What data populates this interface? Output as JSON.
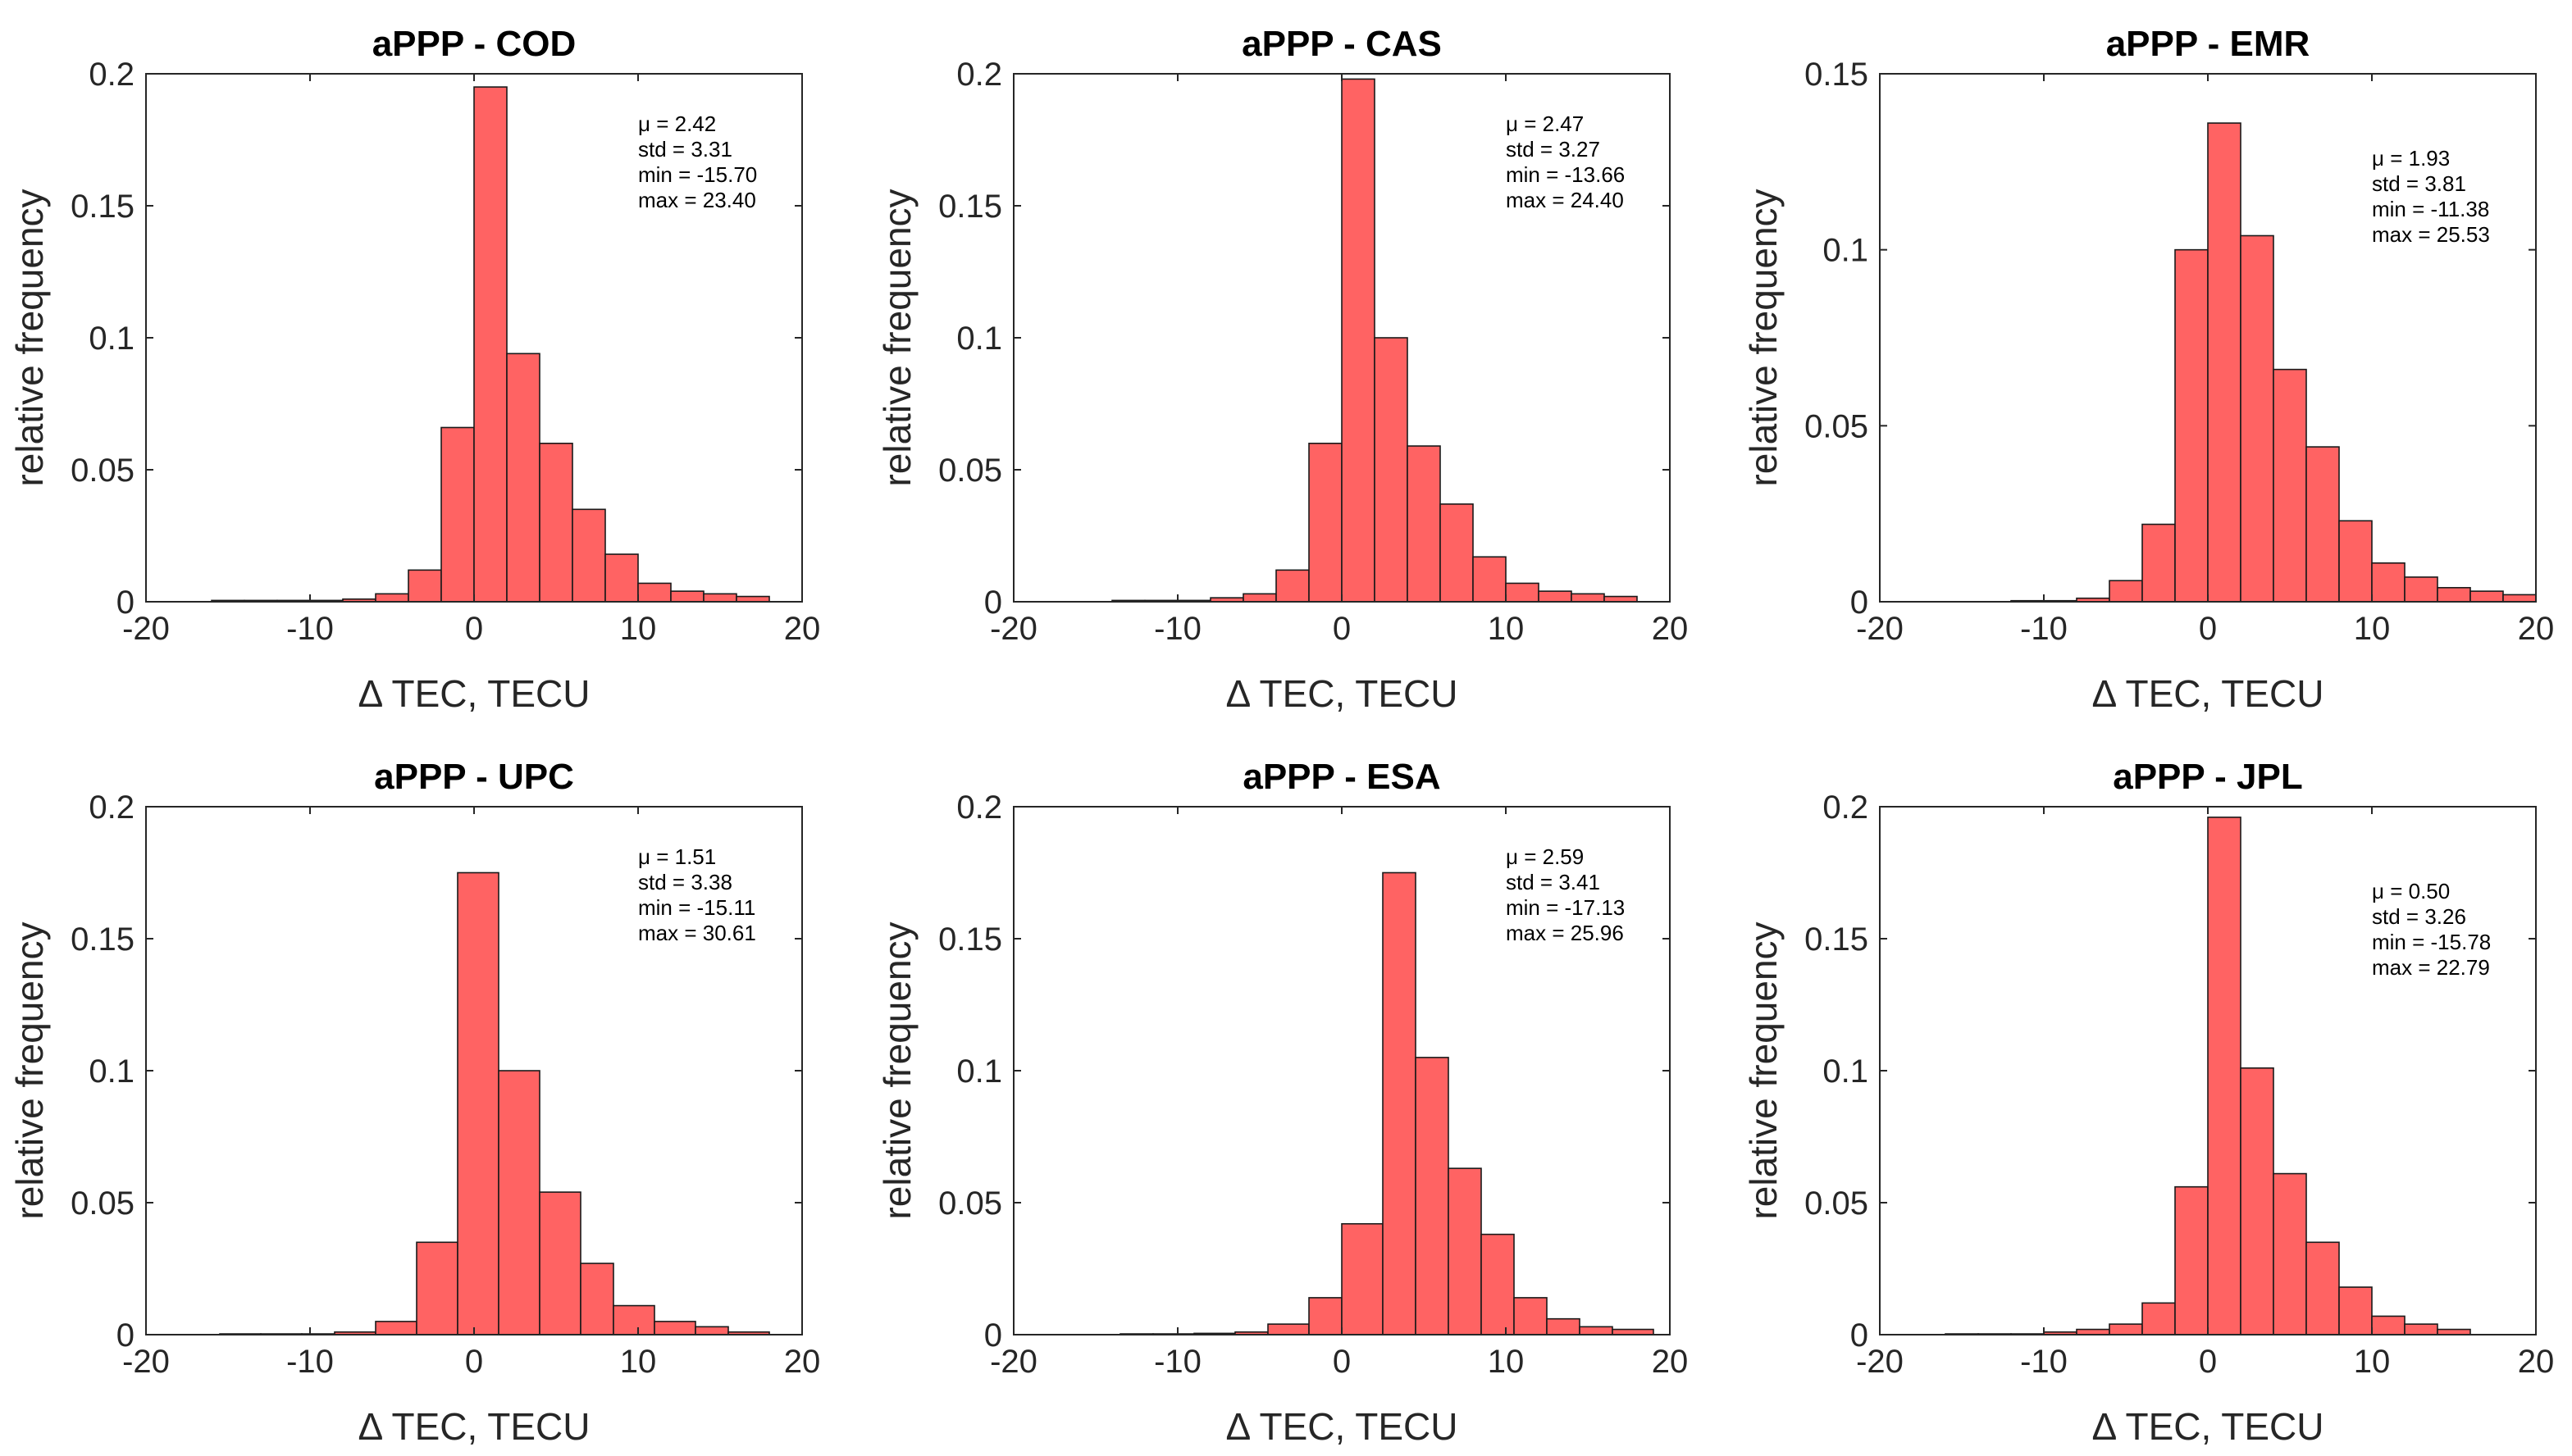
{
  "chart_data": [
    {
      "type": "bar",
      "title": "aPPP -  COD",
      "xlabel": "Δ TEC, TECU",
      "ylabel": "relative frequency",
      "xlim": [
        -20,
        20
      ],
      "ylim": [
        0,
        0.2
      ],
      "xticks": [
        "-20",
        "-10",
        "0",
        "10",
        "20"
      ],
      "yticks": [
        "0",
        "0.05",
        "0.1",
        "0.15",
        "0.2"
      ],
      "bin_edges": [
        -16,
        -14,
        -12,
        -10,
        -8,
        -6,
        -4,
        -2,
        0,
        2,
        4,
        6,
        8,
        10,
        12,
        14,
        16,
        18
      ],
      "values": [
        0.0005,
        0.0005,
        0.0005,
        0.0005,
        0.001,
        0.003,
        0.012,
        0.066,
        0.195,
        0.094,
        0.06,
        0.035,
        0.018,
        0.007,
        0.004,
        0.003,
        0.002
      ],
      "color": "#ff6363",
      "stats": [
        "μ = 2.42",
        "std = 3.31",
        "min = -15.70",
        "max = 23.40"
      ],
      "grid": false
    },
    {
      "type": "bar",
      "title": "aPPP -  CAS",
      "xlabel": "Δ TEC, TECU",
      "ylabel": "relative frequency",
      "xlim": [
        -20,
        20
      ],
      "ylim": [
        0,
        0.2
      ],
      "xticks": [
        "-20",
        "-10",
        "0",
        "10",
        "20"
      ],
      "yticks": [
        "0",
        "0.05",
        "0.1",
        "0.15",
        "0.2"
      ],
      "bin_edges": [
        -14,
        -12,
        -10,
        -8,
        -6,
        -4,
        -2,
        0,
        2,
        4,
        6,
        8,
        10,
        12,
        14,
        16,
        18
      ],
      "values": [
        0.0005,
        0.0005,
        0.0005,
        0.0015,
        0.003,
        0.012,
        0.06,
        0.198,
        0.1,
        0.059,
        0.037,
        0.017,
        0.007,
        0.004,
        0.003,
        0.002
      ],
      "color": "#ff6363",
      "stats": [
        "μ = 2.47",
        "std = 3.27",
        "min = -13.66",
        "max = 24.40"
      ],
      "grid": false
    },
    {
      "type": "bar",
      "title": "aPPP -  EMR",
      "xlabel": "Δ TEC, TECU",
      "ylabel": "relative frequency",
      "xlim": [
        -20,
        20
      ],
      "ylim": [
        0,
        0.15
      ],
      "xticks": [
        "-20",
        "-10",
        "0",
        "10",
        "20"
      ],
      "yticks": [
        "0",
        "0.05",
        "0.1",
        "0.15"
      ],
      "bin_edges": [
        -12,
        -10,
        -8,
        -6,
        -4,
        -2,
        0,
        2,
        4,
        6,
        8,
        10,
        12,
        14,
        16,
        18,
        20
      ],
      "values": [
        0.0003,
        0.0003,
        0.001,
        0.006,
        0.022,
        0.1,
        0.136,
        0.104,
        0.066,
        0.044,
        0.023,
        0.011,
        0.007,
        0.004,
        0.003,
        0.002
      ],
      "color": "#ff6363",
      "stats": [
        "μ = 1.93",
        "std = 3.81",
        "min = -11.38",
        "max = 25.53"
      ],
      "grid": false
    },
    {
      "type": "bar",
      "title": "aPPP -  UPC",
      "xlabel": "Δ TEC, TECU",
      "ylabel": "relative frequency",
      "xlim": [
        -20,
        20
      ],
      "ylim": [
        0,
        0.2
      ],
      "xticks": [
        "-20",
        "-10",
        "0",
        "10",
        "20"
      ],
      "yticks": [
        "0",
        "0.05",
        "0.1",
        "0.15",
        "0.2"
      ],
      "bin_edges": [
        -15.5,
        -13,
        -10.5,
        -8.5,
        -6,
        -3.5,
        -1,
        1.5,
        4,
        6.5,
        8.5,
        11,
        13.5,
        15.5,
        18
      ],
      "values": [
        0.0003,
        0.0003,
        0.0003,
        0.001,
        0.005,
        0.035,
        0.175,
        0.1,
        0.054,
        0.027,
        0.011,
        0.005,
        0.003,
        0.001
      ],
      "color": "#ff6363",
      "stats": [
        "μ = 1.51",
        "std = 3.38",
        "min = -15.11",
        "max = 30.61"
      ],
      "grid": false
    },
    {
      "type": "bar",
      "title": "aPPP -  ESA",
      "xlabel": "Δ TEC, TECU",
      "ylabel": "relative frequency",
      "xlim": [
        -20,
        20
      ],
      "ylim": [
        0,
        0.2
      ],
      "xticks": [
        "-20",
        "-10",
        "0",
        "10",
        "20"
      ],
      "yticks": [
        "0",
        "0.05",
        "0.1",
        "0.15",
        "0.2"
      ],
      "bin_edges": [
        -13.5,
        -11.5,
        -9,
        -6.5,
        -4.5,
        -2,
        0,
        2.5,
        4.5,
        6.5,
        8.5,
        10.5,
        12.5,
        14.5,
        16.5,
        19
      ],
      "values": [
        0.0003,
        0.0003,
        0.0005,
        0.001,
        0.004,
        0.014,
        0.042,
        0.175,
        0.105,
        0.063,
        0.038,
        0.014,
        0.006,
        0.003,
        0.002
      ],
      "color": "#ff6363",
      "stats": [
        "μ = 2.59",
        "std = 3.41",
        "min = -17.13",
        "max = 25.96"
      ],
      "grid": false
    },
    {
      "type": "bar",
      "title": "aPPP -  JPL",
      "xlabel": "Δ TEC, TECU",
      "ylabel": "relative frequency",
      "xlim": [
        -20,
        20
      ],
      "ylim": [
        0,
        0.2
      ],
      "xticks": [
        "-20",
        "-10",
        "0",
        "10",
        "20"
      ],
      "yticks": [
        "0",
        "0.05",
        "0.1",
        "0.15",
        "0.2"
      ],
      "bin_edges": [
        -16,
        -14,
        -12,
        -10,
        -8,
        -6,
        -4,
        -2,
        0,
        2,
        4,
        6,
        8,
        10,
        12,
        14,
        16
      ],
      "values": [
        0.0003,
        0.0003,
        0.0003,
        0.001,
        0.002,
        0.004,
        0.012,
        0.056,
        0.196,
        0.101,
        0.061,
        0.035,
        0.018,
        0.007,
        0.004,
        0.002
      ],
      "color": "#ff6363",
      "stats": [
        "μ = 0.50",
        "std = 3.26",
        "min = -15.78",
        "max = 22.79"
      ],
      "grid": false
    }
  ]
}
